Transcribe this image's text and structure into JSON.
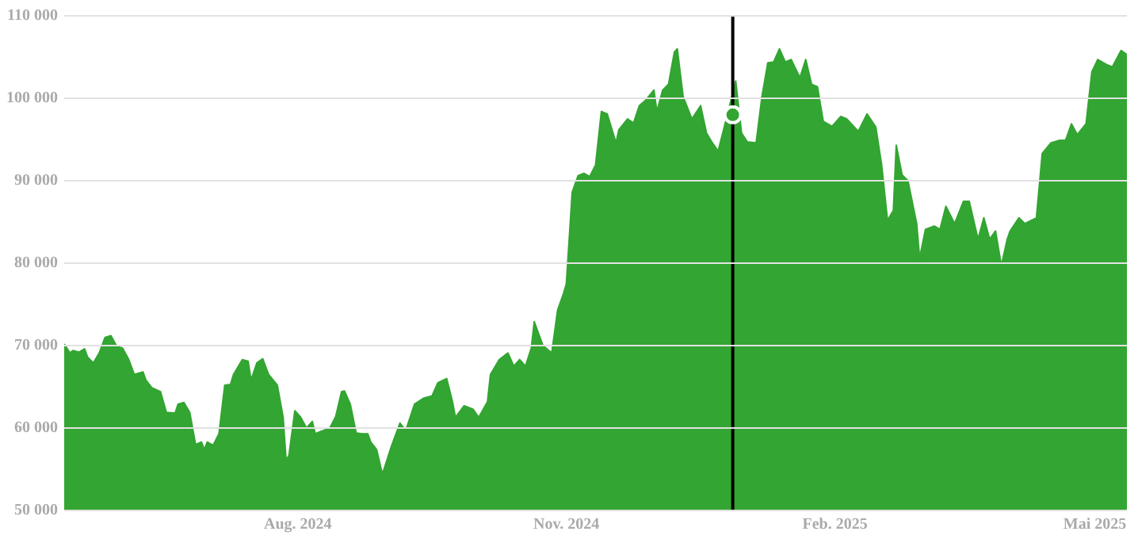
{
  "chart_data": {
    "type": "area",
    "legend": false,
    "grid": "y",
    "marker": "none",
    "tick_labels": "xy",
    "xlim": [
      "2024-05-13",
      "2025-05-12"
    ],
    "xticks": [
      {
        "value": "2024-08-01",
        "label": "Aug. 2024"
      },
      {
        "value": "2024-11-01",
        "label": "Nov. 2024"
      },
      {
        "value": "2025-02-01",
        "label": "Feb. 2025"
      },
      {
        "value": "2025-05-01",
        "label": "Mai 2025"
      }
    ],
    "ylim": [
      50000,
      110000
    ],
    "yticks": [
      {
        "value": 50000,
        "label": "50 000"
      },
      {
        "value": 60000,
        "label": "60 000"
      },
      {
        "value": 70000,
        "label": "70 000"
      },
      {
        "value": 80000,
        "label": "80 000"
      },
      {
        "value": 90000,
        "label": "90 000"
      },
      {
        "value": 100000,
        "label": "100 000"
      },
      {
        "value": 110000,
        "label": "110 000"
      }
    ],
    "ref_lines": [
      {
        "axis": "x",
        "value": "2024-12-28",
        "color": "#000000"
      }
    ],
    "series": [
      {
        "color": "#33a532",
        "x": [
          "2024-05-13",
          "2024-05-15",
          "2024-05-16",
          "2024-05-18",
          "2024-05-20",
          "2024-05-21",
          "2024-05-23",
          "2024-05-25",
          "2024-05-27",
          "2024-05-29",
          "2024-05-31",
          "2024-06-02",
          "2024-06-04",
          "2024-06-06",
          "2024-06-09",
          "2024-06-10",
          "2024-06-12",
          "2024-06-15",
          "2024-06-17",
          "2024-06-20",
          "2024-06-21",
          "2024-06-23",
          "2024-06-25",
          "2024-06-27",
          "2024-06-29",
          "2024-06-30",
          "2024-07-01",
          "2024-07-03",
          "2024-07-05",
          "2024-07-07",
          "2024-07-09",
          "2024-07-10",
          "2024-07-13",
          "2024-07-15",
          "2024-07-16",
          "2024-07-18",
          "2024-07-20",
          "2024-07-22",
          "2024-07-25",
          "2024-07-27",
          "2024-07-28",
          "2024-07-29",
          "2024-07-31",
          "2024-08-02",
          "2024-08-04",
          "2024-08-06",
          "2024-08-07",
          "2024-08-09",
          "2024-08-12",
          "2024-08-14",
          "2024-08-16",
          "2024-08-17",
          "2024-08-19",
          "2024-08-21",
          "2024-08-23",
          "2024-08-25",
          "2024-08-26",
          "2024-08-28",
          "2024-08-30",
          "2024-09-02",
          "2024-09-05",
          "2024-09-07",
          "2024-09-10",
          "2024-09-13",
          "2024-09-16",
          "2024-09-18",
          "2024-09-21",
          "2024-09-23",
          "2024-09-24",
          "2024-09-27",
          "2024-09-30",
          "2024-10-02",
          "2024-10-05",
          "2024-10-06",
          "2024-10-09",
          "2024-10-12",
          "2024-10-14",
          "2024-10-16",
          "2024-10-18",
          "2024-10-20",
          "2024-10-21",
          "2024-10-24",
          "2024-10-27",
          "2024-10-29",
          "2024-10-31",
          "2024-11-01",
          "2024-11-03",
          "2024-11-05",
          "2024-11-07",
          "2024-11-09",
          "2024-11-11",
          "2024-11-13",
          "2024-11-15",
          "2024-11-18",
          "2024-11-19",
          "2024-11-22",
          "2024-11-24",
          "2024-11-26",
          "2024-11-28",
          "2024-12-01",
          "2024-12-02",
          "2024-12-04",
          "2024-12-06",
          "2024-12-08",
          "2024-12-09",
          "2024-12-11",
          "2024-12-14",
          "2024-12-17",
          "2024-12-19",
          "2024-12-21",
          "2024-12-23",
          "2024-12-26",
          "2024-12-29",
          "2024-12-31",
          "2025-01-02",
          "2025-01-05",
          "2025-01-07",
          "2025-01-09",
          "2025-01-11",
          "2025-01-13",
          "2025-01-15",
          "2025-01-17",
          "2025-01-20",
          "2025-01-22",
          "2025-01-24",
          "2025-01-26",
          "2025-01-28",
          "2025-01-31",
          "2025-02-03",
          "2025-02-05",
          "2025-02-09",
          "2025-02-12",
          "2025-02-15",
          "2025-02-17",
          "2025-02-19",
          "2025-02-21",
          "2025-02-22",
          "2025-02-24",
          "2025-02-26",
          "2025-03-01",
          "2025-03-02",
          "2025-03-04",
          "2025-03-07",
          "2025-03-09",
          "2025-03-11",
          "2025-03-14",
          "2025-03-17",
          "2025-03-19",
          "2025-03-22",
          "2025-03-24",
          "2025-03-26",
          "2025-03-28",
          "2025-03-30",
          "2025-04-01",
          "2025-04-02",
          "2025-04-05",
          "2025-04-07",
          "2025-04-11",
          "2025-04-13",
          "2025-04-16",
          "2025-04-19",
          "2025-04-21",
          "2025-04-23",
          "2025-04-25",
          "2025-04-28",
          "2025-04-30",
          "2025-05-02",
          "2025-05-05",
          "2025-05-07",
          "2025-05-10",
          "2025-05-12"
        ],
        "values": [
          70200,
          69100,
          69400,
          69200,
          69600,
          68600,
          67900,
          69100,
          71000,
          71200,
          69900,
          69700,
          68400,
          66500,
          66800,
          65800,
          64900,
          64400,
          61900,
          61800,
          62900,
          63100,
          61900,
          58000,
          58300,
          57400,
          58300,
          57900,
          59300,
          65200,
          65300,
          66500,
          68300,
          68100,
          65800,
          67900,
          68400,
          66500,
          65200,
          61300,
          56100,
          56700,
          62100,
          61300,
          60000,
          60800,
          59300,
          59600,
          60000,
          61400,
          64400,
          64500,
          62900,
          59400,
          59300,
          59300,
          58300,
          57400,
          54400,
          57700,
          60600,
          59700,
          62900,
          63600,
          63900,
          65500,
          66000,
          63200,
          61300,
          62700,
          62300,
          61300,
          63200,
          66500,
          68300,
          69100,
          67500,
          68300,
          67500,
          69700,
          72900,
          70000,
          69100,
          74300,
          76300,
          77500,
          88600,
          90600,
          90900,
          90500,
          91900,
          98400,
          98100,
          94600,
          96200,
          97500,
          97000,
          99100,
          99700,
          101000,
          98400,
          101000,
          101700,
          105600,
          106000,
          100200,
          97500,
          99100,
          95800,
          94600,
          93600,
          97800,
          102100,
          95800,
          94700,
          94600,
          100200,
          104300,
          104400,
          106000,
          104400,
          104700,
          102500,
          104700,
          101700,
          101400,
          97200,
          96600,
          97800,
          97500,
          96000,
          98100,
          96500,
          91900,
          85200,
          86400,
          94300,
          90700,
          90000,
          84800,
          80600,
          84100,
          84500,
          84100,
          86900,
          84800,
          87500,
          87500,
          82900,
          85500,
          82900,
          83900,
          79700,
          82900,
          83900,
          85500,
          84800,
          85500,
          93300,
          94600,
          94900,
          94900,
          96900,
          95600,
          96900,
          103200,
          104700,
          104100,
          103800,
          105800,
          105300
        ]
      },
      {
        "type": "scatter",
        "color": "#33a532",
        "marker": "circle",
        "x": [
          "2024-12-28"
        ],
        "values": [
          98000
        ]
      }
    ]
  }
}
